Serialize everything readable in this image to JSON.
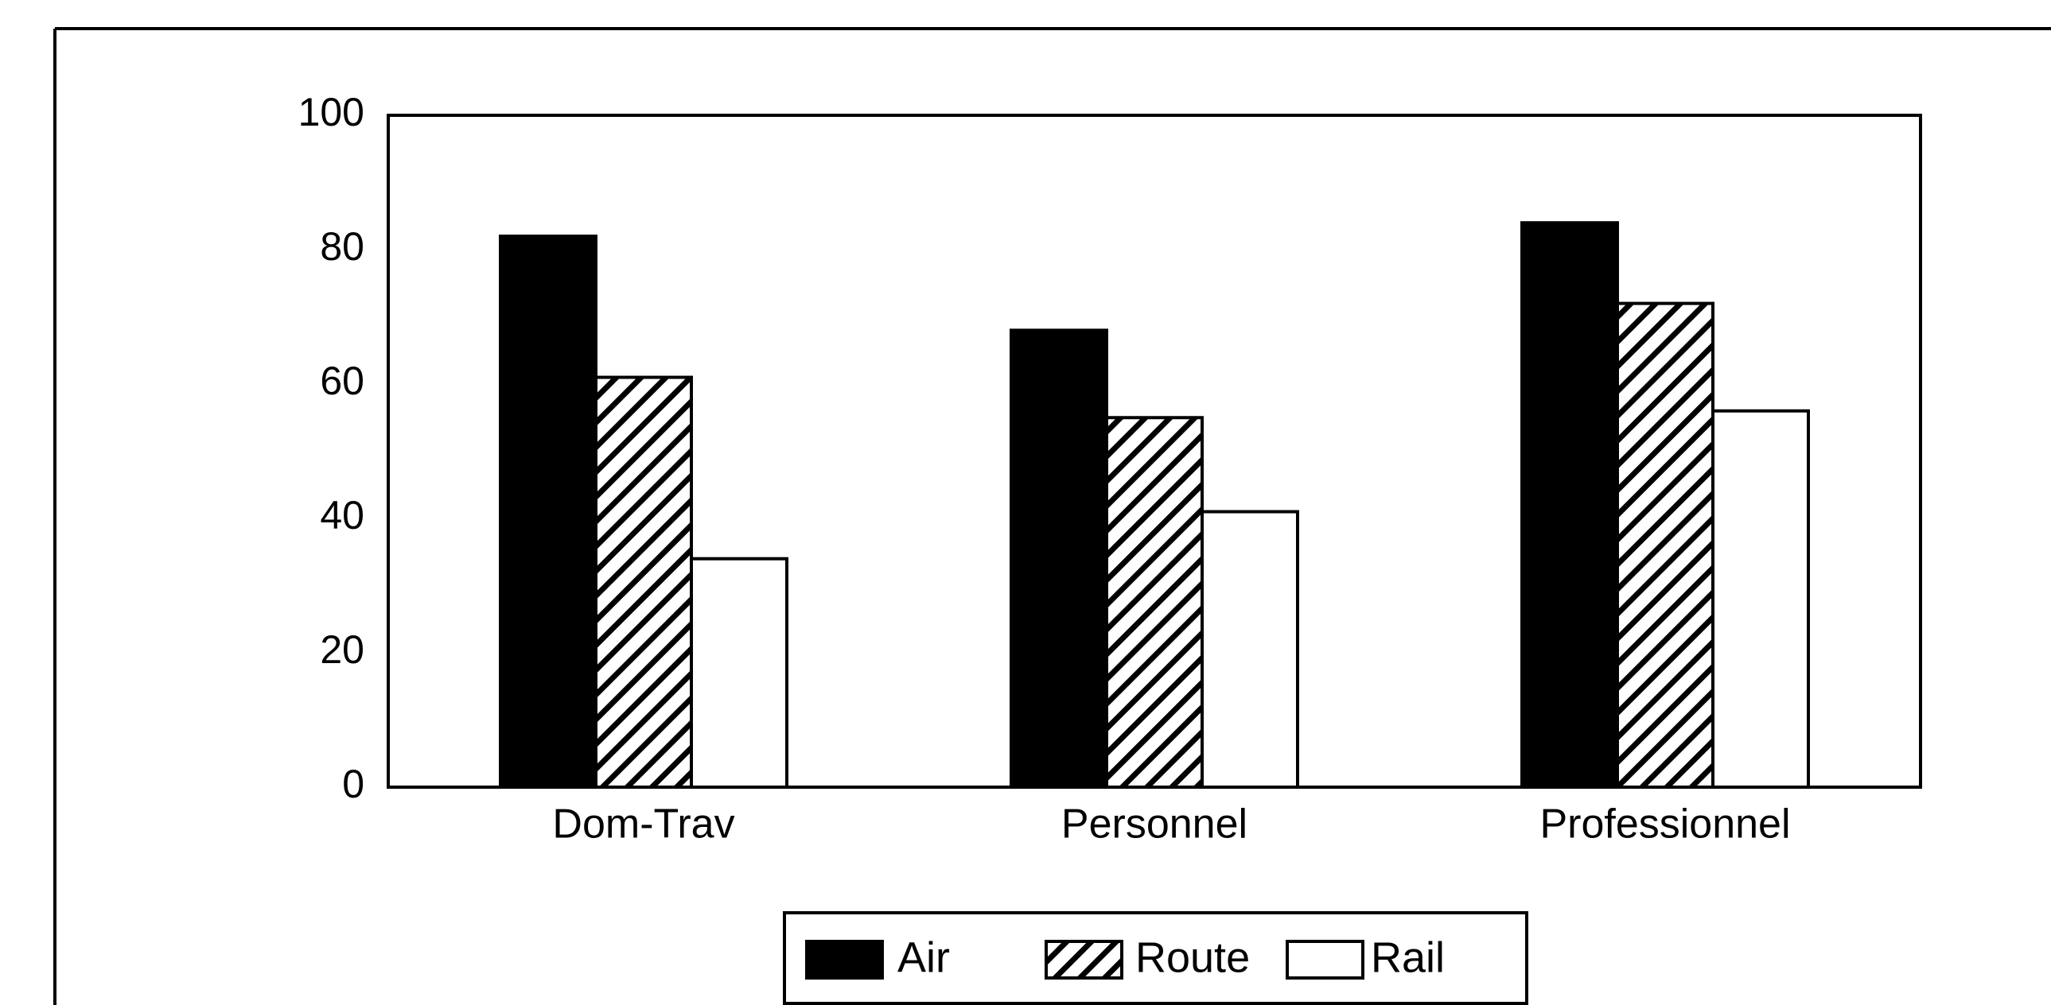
{
  "chart_data": {
    "type": "bar",
    "categories": [
      "Dom-Trav",
      "Personnel",
      "Professionnel"
    ],
    "series": [
      {
        "name": "Air",
        "color": "#000000",
        "values": [
          82,
          68,
          84
        ]
      },
      {
        "name": "Route",
        "color": "#000000",
        "pattern": "hatch",
        "values": [
          61,
          55,
          72
        ]
      },
      {
        "name": "Rail",
        "color": "#ffffff",
        "values": [
          34,
          41,
          56
        ]
      }
    ],
    "ylim": [
      0,
      100
    ],
    "yticks": [
      0,
      20,
      40,
      60,
      80,
      100
    ],
    "grid": false,
    "legend": "bottom"
  }
}
